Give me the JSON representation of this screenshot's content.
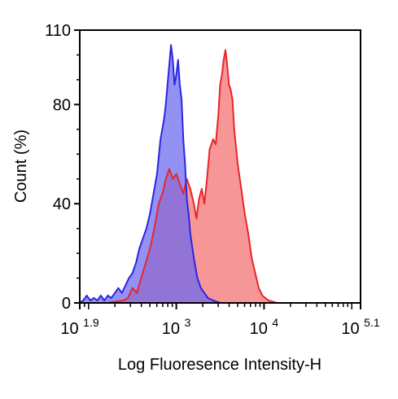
{
  "chart_data": {
    "type": "area",
    "title": "",
    "xlabel": "Log Fluoresence Intensity-H",
    "ylabel": "Count  (%)",
    "x_scale": "log",
    "xlim": [
      1.9,
      5.1
    ],
    "ylim": [
      0,
      110
    ],
    "x_ticks": [
      {
        "value": 1.9,
        "base": "10",
        "exp": "1.9"
      },
      {
        "value": 3,
        "base": "10",
        "exp": "3"
      },
      {
        "value": 4,
        "base": "10",
        "exp": "4"
      },
      {
        "value": 5.1,
        "base": "10",
        "exp": "5.1"
      }
    ],
    "y_ticks": [
      0,
      40,
      80,
      110
    ],
    "grid": false,
    "series": [
      {
        "color": "#e8262a",
        "fill": "#f26d6f",
        "points": [
          [
            1.9,
            0
          ],
          [
            2.05,
            0
          ],
          [
            2.2,
            0
          ],
          [
            2.4,
            1
          ],
          [
            2.45,
            2
          ],
          [
            2.5,
            6
          ],
          [
            2.55,
            4
          ],
          [
            2.6,
            10
          ],
          [
            2.65,
            16
          ],
          [
            2.7,
            22
          ],
          [
            2.75,
            30
          ],
          [
            2.8,
            40
          ],
          [
            2.85,
            45
          ],
          [
            2.88,
            50
          ],
          [
            2.92,
            54
          ],
          [
            2.96,
            50
          ],
          [
            3.0,
            52
          ],
          [
            3.04,
            48
          ],
          [
            3.08,
            44
          ],
          [
            3.12,
            50
          ],
          [
            3.16,
            46
          ],
          [
            3.2,
            40
          ],
          [
            3.23,
            34
          ],
          [
            3.26,
            42
          ],
          [
            3.29,
            46
          ],
          [
            3.32,
            40
          ],
          [
            3.35,
            50
          ],
          [
            3.38,
            62
          ],
          [
            3.42,
            66
          ],
          [
            3.45,
            64
          ],
          [
            3.48,
            76
          ],
          [
            3.5,
            88
          ],
          [
            3.52,
            92
          ],
          [
            3.54,
            98
          ],
          [
            3.56,
            102
          ],
          [
            3.58,
            96
          ],
          [
            3.6,
            88
          ],
          [
            3.62,
            86
          ],
          [
            3.64,
            82
          ],
          [
            3.66,
            70
          ],
          [
            3.7,
            56
          ],
          [
            3.74,
            46
          ],
          [
            3.78,
            36
          ],
          [
            3.82,
            28
          ],
          [
            3.86,
            18
          ],
          [
            3.9,
            12
          ],
          [
            3.94,
            6
          ],
          [
            3.98,
            3
          ],
          [
            4.05,
            1
          ],
          [
            4.15,
            0
          ],
          [
            5.1,
            0
          ]
        ]
      },
      {
        "color": "#2a27e0",
        "fill": "#6b66f0",
        "points": [
          [
            1.9,
            0
          ],
          [
            1.94,
            1
          ],
          [
            1.98,
            3
          ],
          [
            2.02,
            1
          ],
          [
            2.06,
            2
          ],
          [
            2.1,
            1
          ],
          [
            2.14,
            3
          ],
          [
            2.18,
            1
          ],
          [
            2.22,
            3
          ],
          [
            2.26,
            2
          ],
          [
            2.3,
            4
          ],
          [
            2.34,
            6
          ],
          [
            2.38,
            4
          ],
          [
            2.42,
            7
          ],
          [
            2.46,
            10
          ],
          [
            2.5,
            12
          ],
          [
            2.54,
            16
          ],
          [
            2.58,
            22
          ],
          [
            2.62,
            26
          ],
          [
            2.66,
            30
          ],
          [
            2.7,
            36
          ],
          [
            2.74,
            44
          ],
          [
            2.78,
            52
          ],
          [
            2.82,
            66
          ],
          [
            2.86,
            74
          ],
          [
            2.88,
            80
          ],
          [
            2.9,
            88
          ],
          [
            2.92,
            96
          ],
          [
            2.94,
            104
          ],
          [
            2.96,
            98
          ],
          [
            2.98,
            88
          ],
          [
            3.0,
            92
          ],
          [
            3.02,
            98
          ],
          [
            3.04,
            88
          ],
          [
            3.06,
            82
          ],
          [
            3.08,
            66
          ],
          [
            3.1,
            56
          ],
          [
            3.12,
            42
          ],
          [
            3.14,
            36
          ],
          [
            3.16,
            28
          ],
          [
            3.2,
            18
          ],
          [
            3.24,
            10
          ],
          [
            3.28,
            6
          ],
          [
            3.32,
            4
          ],
          [
            3.36,
            2
          ],
          [
            3.42,
            1
          ],
          [
            3.5,
            0
          ],
          [
            5.1,
            0
          ]
        ]
      }
    ]
  }
}
